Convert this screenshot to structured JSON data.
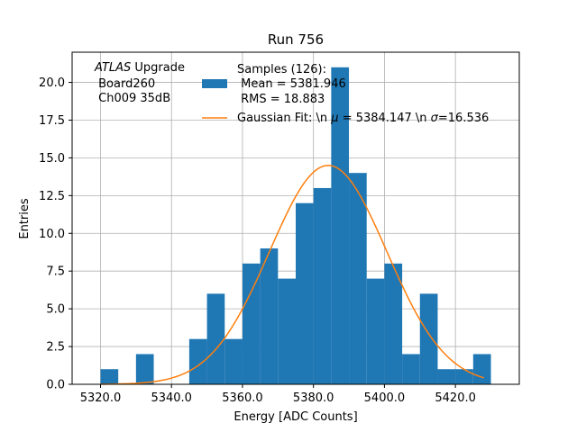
{
  "chart_data": {
    "type": "bar",
    "title": "Run 756",
    "xlabel": "Energy [ADC Counts]",
    "ylabel": "Entries",
    "xlim": [
      5312,
      5438
    ],
    "ylim": [
      0,
      22
    ],
    "grid": true,
    "x_ticks": [
      5320,
      5340,
      5360,
      5380,
      5400,
      5420
    ],
    "x_tick_labels": [
      "5320.0",
      "5340.0",
      "5360.0",
      "5380.0",
      "5400.0",
      "5420.0"
    ],
    "y_ticks": [
      0,
      2.5,
      5,
      7.5,
      10,
      12.5,
      15,
      17.5,
      20
    ],
    "y_tick_labels": [
      "0.0",
      "2.5",
      "5.0",
      "7.5",
      "10.0",
      "12.5",
      "15.0",
      "17.5",
      "20.0"
    ],
    "bin_edges": [
      5320,
      5325,
      5330,
      5335,
      5340,
      5345,
      5350,
      5355,
      5360,
      5365,
      5370,
      5375,
      5380,
      5385,
      5390,
      5395,
      5400,
      5405,
      5410,
      5415,
      5420,
      5425,
      5430
    ],
    "counts": [
      1,
      0,
      2,
      0,
      0,
      3,
      6,
      3,
      8,
      9,
      7,
      12,
      13,
      21,
      14,
      7,
      8,
      2,
      6,
      1,
      1,
      2
    ],
    "fit": {
      "mu": 5384.147,
      "sigma": 16.536,
      "amplitude": 14.5,
      "x_start": 5320,
      "x_end": 5428
    },
    "colors": {
      "hist": "#1f77b4",
      "fit": "#ff7f0e",
      "grid": "#b0b0b0"
    },
    "annotation": [
      "ATLAS",
      " Upgrade",
      " Board260",
      " Ch009 35dB"
    ],
    "legend": {
      "placement": "top-right",
      "hist_label": [
        "Samples (126):",
        " Mean = 5381.946",
        " RMS = 18.883"
      ],
      "fit_label_prefix": "Gaussian Fit: \\n ",
      "fit_mu_symbol": "μ",
      "fit_mu_text": " = 5384.147 \\n ",
      "fit_sigma_symbol": "σ",
      "fit_sigma_text": "=16.536"
    }
  }
}
